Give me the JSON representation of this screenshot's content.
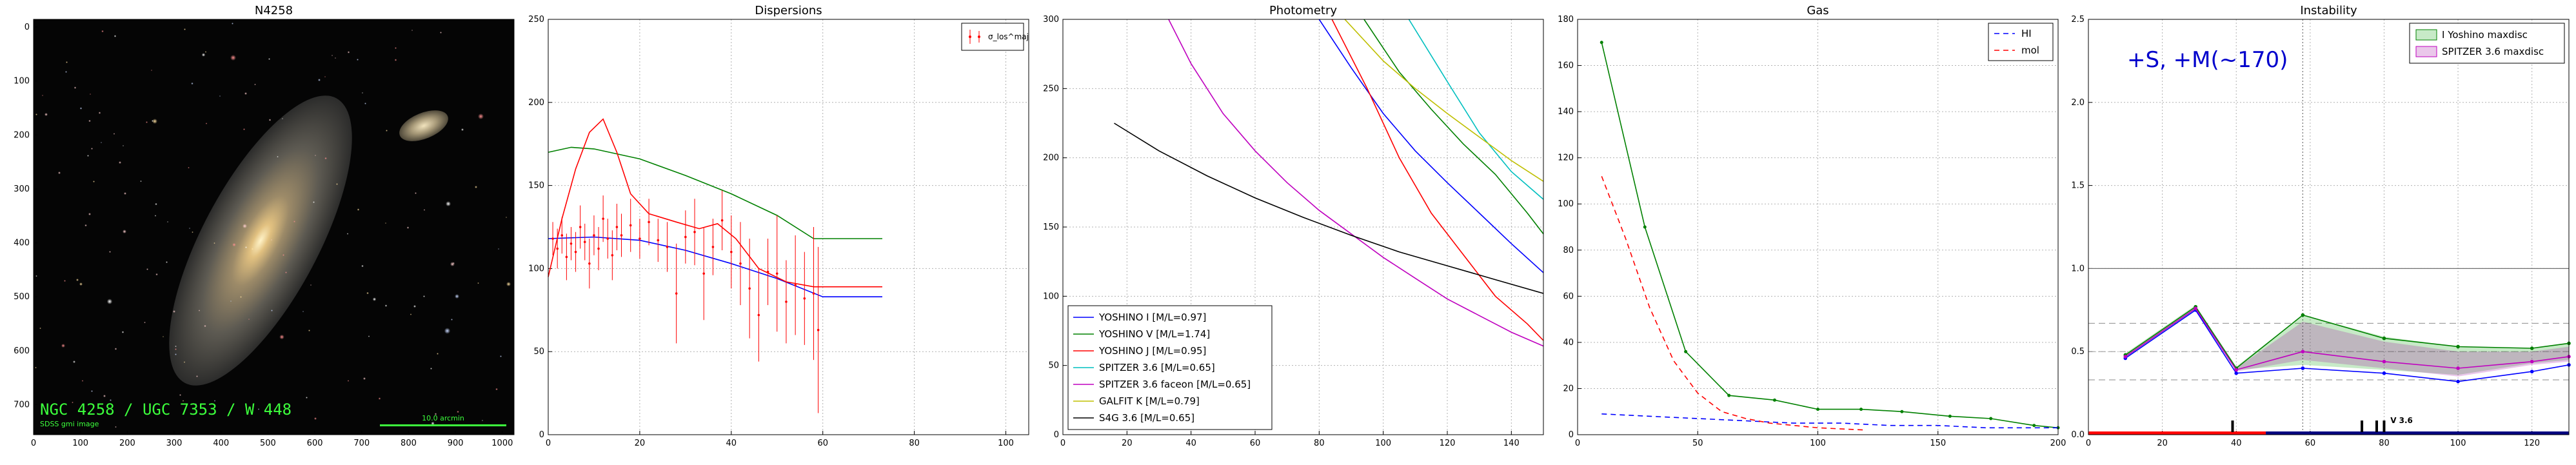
{
  "panels": {
    "image_title": "N4258",
    "dispersions_title": "Dispersions",
    "photometry_title": "Photometry",
    "gas_title": "Gas",
    "instability_title": "Instability"
  },
  "image_panel": {
    "caption": "NGC 4258 / UGC 7353 / W 448",
    "credit": "SDSS gmi image",
    "scale_label": "10.0 arcmin",
    "x_ticks": [
      "0",
      "100",
      "200",
      "300",
      "400",
      "500",
      "600",
      "700",
      "800",
      "900",
      "1000"
    ],
    "y_ticks": [
      "0",
      "100",
      "200",
      "300",
      "400",
      "500",
      "600",
      "700"
    ]
  },
  "colors": {
    "blue": "#0000ff",
    "green": "#008000",
    "red": "#ff0000",
    "cyan": "#00bfbf",
    "magenta": "#bf00bf",
    "yellow": "#bfbf00",
    "black": "#000000"
  },
  "chart_data": [
    {
      "type": "line",
      "title": "Dispersions",
      "xlim": [
        0,
        105
      ],
      "ylim": [
        0,
        250
      ],
      "x_ticks": [
        0,
        20,
        40,
        60,
        80,
        100
      ],
      "y_ticks": [
        0,
        50,
        100,
        150,
        200,
        250
      ],
      "legend": {
        "placement": "top-right",
        "entries": [
          "σ_los^maj"
        ]
      },
      "series": [
        {
          "color": "green",
          "x": [
            0,
            5,
            10,
            20,
            30,
            40,
            50,
            58,
            73
          ],
          "y": [
            170,
            173,
            172,
            166,
            156,
            145,
            132,
            118,
            118
          ]
        },
        {
          "color": "blue",
          "x": [
            0,
            10,
            20,
            30,
            40,
            50,
            60,
            73
          ],
          "y": [
            118,
            119,
            117,
            111,
            103,
            94,
            83,
            83
          ]
        },
        {
          "color": "red",
          "x": [
            0,
            3,
            6,
            9,
            12,
            15,
            18,
            22,
            28,
            33,
            37,
            41,
            46,
            52,
            58,
            73
          ],
          "y": [
            95,
            130,
            160,
            182,
            190,
            170,
            145,
            133,
            128,
            124,
            127,
            118,
            100,
            92,
            89,
            89
          ]
        }
      ],
      "errorbars": {
        "color": "red",
        "x": [
          1,
          2,
          3,
          4,
          5,
          6,
          7,
          8,
          9,
          10,
          11,
          12,
          13,
          14,
          15,
          16,
          18,
          20,
          22,
          24,
          26,
          28,
          30,
          32,
          34,
          36,
          38,
          40,
          42,
          44,
          46,
          48,
          50,
          52,
          54,
          56,
          58,
          59
        ],
        "y": [
          118,
          112,
          120,
          107,
          115,
          110,
          125,
          116,
          103,
          120,
          112,
          130,
          118,
          108,
          125,
          120,
          126,
          118,
          128,
          117,
          113,
          85,
          119,
          122,
          97,
          113,
          129,
          110,
          103,
          88,
          72,
          98,
          97,
          80,
          90,
          82,
          85,
          63
        ],
        "err": [
          10,
          12,
          11,
          14,
          10,
          12,
          13,
          11,
          15,
          12,
          13,
          14,
          12,
          15,
          14,
          13,
          16,
          12,
          14,
          13,
          15,
          30,
          16,
          20,
          28,
          17,
          18,
          22,
          25,
          30,
          28,
          20,
          35,
          25,
          30,
          28,
          40,
          50
        ]
      }
    },
    {
      "type": "line",
      "title": "Photometry",
      "xlim": [
        0,
        150
      ],
      "ylim": [
        0,
        300
      ],
      "x_ticks": [
        0,
        20,
        40,
        60,
        80,
        100,
        120,
        140
      ],
      "y_ticks": [
        0,
        50,
        100,
        150,
        200,
        250,
        300
      ],
      "legend": {
        "placement": "lower-left",
        "entries": [
          "YOSHINO I [M/L=0.97]",
          "YOSHINO V [M/L=1.74]",
          "YOSHINO J [M/L=0.95]",
          "SPITZER 3.6 [M/L=0.65]",
          "SPITZER 3.6 faceon [M/L=0.65]",
          "GALFIT K [M/L=0.79]",
          "S4G 3.6 [M/L=0.65]"
        ]
      },
      "series": [
        {
          "name": "YOSHINO I [M/L=0.97]",
          "color": "blue",
          "x": [
            80,
            90,
            100,
            110,
            120,
            130,
            140,
            150
          ],
          "y": [
            300,
            265,
            232,
            205,
            182,
            160,
            138,
            117
          ]
        },
        {
          "name": "YOSHINO V [M/L=1.74]",
          "color": "green",
          "x": [
            94,
            105,
            115,
            125,
            135,
            145,
            150
          ],
          "y": [
            300,
            262,
            235,
            210,
            188,
            160,
            145
          ]
        },
        {
          "name": "YOSHINO J [M/L=0.95]",
          "color": "red",
          "x": [
            84,
            95,
            105,
            115,
            125,
            135,
            145,
            150
          ],
          "y": [
            300,
            250,
            200,
            160,
            130,
            100,
            80,
            68
          ]
        },
        {
          "name": "SPITZER 3.6 [M/L=0.65]",
          "color": "cyan",
          "x": [
            108,
            120,
            130,
            140,
            150
          ],
          "y": [
            300,
            255,
            218,
            190,
            170
          ]
        },
        {
          "name": "SPITZER 3.6 faceon [M/L=0.65]",
          "color": "magenta",
          "x": [
            33,
            40,
            50,
            60,
            70,
            80,
            90,
            100,
            110,
            120,
            130,
            140,
            150
          ],
          "y": [
            300,
            268,
            232,
            205,
            182,
            162,
            145,
            128,
            113,
            98,
            86,
            74,
            64
          ]
        },
        {
          "name": "GALFIT K [M/L=0.79]",
          "color": "yellow",
          "x": [
            88,
            100,
            110,
            120,
            130,
            140,
            150
          ],
          "y": [
            300,
            270,
            250,
            232,
            215,
            198,
            183
          ]
        },
        {
          "name": "S4G 3.6 [M/L=0.65]",
          "color": "black",
          "x": [
            16,
            30,
            45,
            60,
            75,
            90,
            105,
            120,
            135,
            150
          ],
          "y": [
            225,
            205,
            187,
            171,
            157,
            144,
            132,
            122,
            112,
            102
          ]
        }
      ]
    },
    {
      "type": "line",
      "title": "Gas",
      "xlim": [
        0,
        200
      ],
      "ylim": [
        0,
        180
      ],
      "x_ticks": [
        0,
        50,
        100,
        150,
        200
      ],
      "y_ticks": [
        0,
        20,
        40,
        60,
        80,
        100,
        120,
        140,
        160,
        180
      ],
      "legend": {
        "placement": "top-right",
        "entries": [
          "HI",
          "mol"
        ]
      },
      "series": [
        {
          "color": "green",
          "markers": true,
          "x": [
            10,
            28,
            45,
            63,
            82,
            100,
            118,
            135,
            155,
            172,
            190,
            200
          ],
          "y": [
            170,
            90,
            36,
            17,
            15,
            11,
            11,
            10,
            8,
            7,
            4,
            3
          ]
        },
        {
          "name": "HI",
          "color": "blue",
          "dash": "dashed",
          "x": [
            10,
            30,
            50,
            70,
            90,
            110,
            130,
            150,
            170,
            190,
            200
          ],
          "y": [
            9,
            8,
            7,
            6,
            5,
            5,
            4,
            4,
            3,
            3,
            3
          ]
        },
        {
          "name": "mol",
          "color": "red",
          "dash": "dashed",
          "x": [
            10,
            20,
            30,
            40,
            50,
            60,
            70,
            80,
            90,
            100,
            110,
            120
          ],
          "y": [
            112,
            85,
            55,
            32,
            18,
            10,
            7,
            5,
            4,
            3,
            2.5,
            2
          ]
        }
      ]
    },
    {
      "type": "area",
      "title": "Instability",
      "annotation": "+S, +M(~170)",
      "xlim": [
        0,
        130
      ],
      "ylim": [
        0,
        2.5
      ],
      "x_ticks": [
        0,
        20,
        40,
        60,
        80,
        100,
        120
      ],
      "y_ticks": [
        0.0,
        0.5,
        1.0,
        1.5,
        2.0,
        2.5
      ],
      "vline_x": 58,
      "hline_y": 1.0,
      "hlines_dashed": [
        0.67,
        0.5,
        0.33
      ],
      "bottom_label": "V 3.6",
      "legend": {
        "placement": "top-right",
        "entries": [
          "I Yoshino maxdisc",
          "SPITZER 3.6 maxdisc"
        ]
      },
      "bands": [
        {
          "name": "I Yoshino maxdisc",
          "color": "green",
          "x": [
            10,
            29,
            40,
            58,
            80,
            100,
            120,
            130
          ],
          "upper": [
            0.49,
            0.78,
            0.41,
            0.72,
            0.59,
            0.53,
            0.52,
            0.55
          ],
          "lower": [
            0.46,
            0.75,
            0.39,
            0.42,
            0.39,
            0.36,
            0.43,
            0.45
          ]
        },
        {
          "name": "SPITZER 3.6 maxdisc",
          "color": "magenta",
          "x": [
            10,
            29,
            40,
            58,
            80,
            100,
            120,
            130
          ],
          "upper": [
            0.48,
            0.77,
            0.4,
            0.68,
            0.56,
            0.5,
            0.5,
            0.53
          ],
          "lower": [
            0.46,
            0.75,
            0.38,
            0.45,
            0.4,
            0.35,
            0.42,
            0.44
          ]
        }
      ],
      "series": [
        {
          "color": "blue",
          "markers": true,
          "x": [
            10,
            29,
            40,
            58,
            80,
            100,
            120,
            130
          ],
          "y": [
            0.46,
            0.75,
            0.37,
            0.4,
            0.37,
            0.32,
            0.38,
            0.42
          ]
        },
        {
          "color": "green",
          "markers": true,
          "x": [
            10,
            29,
            40,
            58,
            80,
            100,
            120,
            130
          ],
          "y": [
            0.48,
            0.77,
            0.4,
            0.72,
            0.58,
            0.53,
            0.52,
            0.55
          ]
        },
        {
          "color": "magenta",
          "markers": true,
          "x": [
            10,
            29,
            40,
            58,
            80,
            100,
            120,
            130
          ],
          "y": [
            0.47,
            0.76,
            0.39,
            0.5,
            0.44,
            0.4,
            0.44,
            0.47
          ]
        }
      ],
      "bottom_bars": {
        "red_range": [
          0,
          48
        ],
        "blue_range": [
          48,
          130
        ]
      }
    }
  ]
}
